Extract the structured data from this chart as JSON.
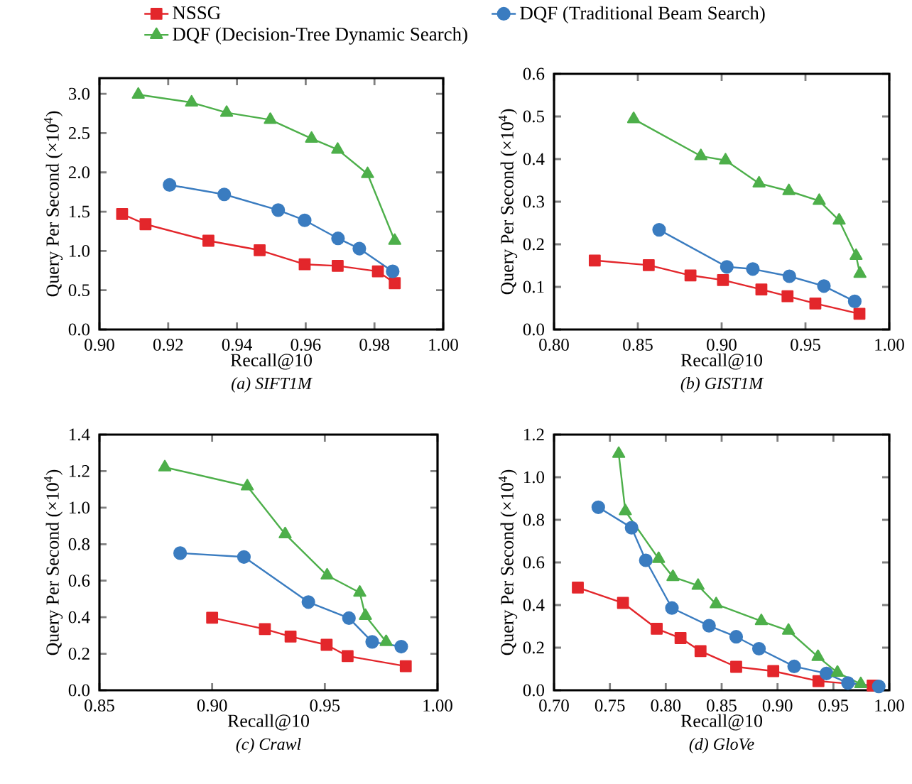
{
  "chart_data": [
    {
      "type": "line",
      "title": "(a) SIFT1M",
      "xlabel": "Recall@10",
      "ylabel": "Query Per Second (×10$^{4}$)",
      "legend": "top",
      "xlim": [
        0.9,
        1.0
      ],
      "ylim": [
        0,
        3.2
      ],
      "xticks": [
        {
          "value": 0.9,
          "label": "0.90"
        },
        {
          "value": 0.92,
          "label": "0.92"
        },
        {
          "value": 0.94,
          "label": "0.94"
        },
        {
          "value": 0.96,
          "label": "0.96"
        },
        {
          "value": 0.98,
          "label": "0.98"
        },
        {
          "value": 1.0,
          "label": "1.00"
        }
      ],
      "yticks": [
        {
          "value": 0,
          "label": "0.0"
        },
        {
          "value": 0.5,
          "label": "0.5"
        },
        {
          "value": 1.0,
          "label": "1.0"
        },
        {
          "value": 1.5,
          "label": "1.5"
        },
        {
          "value": 2.0,
          "label": "2.0"
        },
        {
          "value": 2.5,
          "label": "2.5"
        },
        {
          "value": 3.0,
          "label": "3.0"
        }
      ],
      "series": [
        {
          "name": "NSSG",
          "color": "#e3262b",
          "marker": "square",
          "x": [
            0.9066,
            0.9134,
            0.9317,
            0.9466,
            0.9597,
            0.9693,
            0.981,
            0.9859
          ],
          "values": [
            1.47,
            1.34,
            1.13,
            1.01,
            0.83,
            0.81,
            0.74,
            0.59
          ]
        },
        {
          "name": "DQF (Traditional Beam Search)",
          "color": "#3a7cc0",
          "marker": "circle",
          "x": [
            0.9204,
            0.9363,
            0.952,
            0.9597,
            0.9694,
            0.9756,
            0.9853
          ],
          "values": [
            1.84,
            1.72,
            1.52,
            1.39,
            1.16,
            1.03,
            0.74
          ]
        },
        {
          "name": "DQF (Decision-Tree Dynamic Search)",
          "color": "#4daf4a",
          "marker": "triangle",
          "x": [
            0.9113,
            0.9268,
            0.937,
            0.9497,
            0.9617,
            0.9693,
            0.978,
            0.9859
          ],
          "values": [
            2.99,
            2.89,
            2.76,
            2.67,
            2.43,
            2.29,
            1.98,
            1.13
          ]
        }
      ]
    },
    {
      "type": "line",
      "title": "(b) GIST1M",
      "xlabel": "Recall@10",
      "ylabel": "Query Per Second (×10$^{4}$)",
      "xlim": [
        0.8,
        1.0
      ],
      "ylim": [
        0,
        0.6
      ],
      "xticks": [
        {
          "value": 0.8,
          "label": "0.80"
        },
        {
          "value": 0.85,
          "label": "0.85"
        },
        {
          "value": 0.9,
          "label": "0.90"
        },
        {
          "value": 0.95,
          "label": "0.95"
        },
        {
          "value": 1.0,
          "label": "1.00"
        }
      ],
      "yticks": [
        {
          "value": 0,
          "label": "0.0"
        },
        0.1,
        0.2,
        0.3,
        0.4,
        0.5,
        0.6
      ],
      "series": [
        {
          "color": "#e3262b",
          "marker": "square",
          "x": [
            0.8243,
            0.8565,
            0.8814,
            0.9008,
            0.9237,
            0.9393,
            0.9559,
            0.9822
          ],
          "values": [
            0.162,
            0.151,
            0.127,
            0.116,
            0.094,
            0.078,
            0.061,
            0.037
          ]
        },
        {
          "color": "#3a7cc0",
          "marker": "circle",
          "x": [
            0.8627,
            0.9031,
            0.9186,
            0.9404,
            0.961,
            0.9794
          ],
          "values": [
            0.234,
            0.147,
            0.142,
            0.125,
            0.102,
            0.066
          ]
        },
        {
          "color": "#4daf4a",
          "marker": "triangle",
          "x": [
            0.8475,
            0.8876,
            0.9023,
            0.9223,
            0.9401,
            0.9582,
            0.9701,
            0.9802,
            0.9825
          ],
          "values": [
            0.494,
            0.407,
            0.397,
            0.343,
            0.325,
            0.302,
            0.256,
            0.173,
            0.131
          ]
        }
      ]
    },
    {
      "type": "line",
      "title": "(c) Crawl",
      "xlabel": "Recall@10",
      "ylabel": "Query Per Second (×10$^{4}$)",
      "xlim": [
        0.85,
        1.0
      ],
      "ylim": [
        0,
        1.4
      ],
      "xticks": [
        {
          "value": 0.85,
          "label": "0.85"
        },
        {
          "value": 0.9,
          "label": "0.90"
        },
        {
          "value": 0.95,
          "label": "0.95"
        },
        {
          "value": 1.0,
          "label": "1.00"
        }
      ],
      "yticks": [
        {
          "value": 0,
          "label": "0.0"
        },
        {
          "value": 0.2,
          "label": "0.2"
        },
        {
          "value": 0.4,
          "label": "0.4"
        },
        {
          "value": 0.6,
          "label": "0.6"
        },
        {
          "value": 0.8,
          "label": "0.8"
        },
        {
          "value": 1.0,
          "label": "1.0"
        },
        {
          "value": 1.2,
          "label": "1.2"
        },
        {
          "value": 1.4,
          "label": "1.4"
        }
      ],
      "series": [
        {
          "color": "#e3262b",
          "marker": "square",
          "x": [
            0.9,
            0.9234,
            0.9348,
            0.9508,
            0.9601,
            0.9859
          ],
          "values": [
            0.397,
            0.335,
            0.294,
            0.249,
            0.187,
            0.132
          ]
        },
        {
          "color": "#3a7cc0",
          "marker": "circle",
          "x": [
            0.8858,
            0.9141,
            0.9427,
            0.9607,
            0.971,
            0.9839
          ],
          "values": [
            0.751,
            0.73,
            0.483,
            0.395,
            0.265,
            0.239
          ]
        },
        {
          "color": "#4daf4a",
          "marker": "triangle",
          "x": [
            0.879,
            0.9156,
            0.9324,
            0.951,
            0.9655,
            0.968,
            0.9772
          ],
          "values": [
            1.221,
            1.117,
            0.855,
            0.629,
            0.535,
            0.408,
            0.265
          ]
        }
      ]
    },
    {
      "type": "line",
      "title": "(d) GloVe",
      "xlabel": "Recall@10",
      "ylabel": "Query Per Second (×10$^{4}$)",
      "xlim": [
        0.7,
        1.0
      ],
      "ylim": [
        0,
        1.2
      ],
      "xticks": [
        {
          "value": 0.7,
          "label": "0.70"
        },
        {
          "value": 0.75,
          "label": "0.75"
        },
        {
          "value": 0.8,
          "label": "0.80"
        },
        {
          "value": 0.85,
          "label": "0.85"
        },
        {
          "value": 0.9,
          "label": "0.90"
        },
        {
          "value": 0.95,
          "label": "0.95"
        },
        {
          "value": 1.0,
          "label": "1.00"
        }
      ],
      "yticks": [
        {
          "value": 0,
          "label": "0.0"
        },
        {
          "value": 0.2,
          "label": "0.2"
        },
        {
          "value": 0.4,
          "label": "0.4"
        },
        {
          "value": 0.6,
          "label": "0.6"
        },
        {
          "value": 0.8,
          "label": "0.8"
        },
        {
          "value": 1.0,
          "label": "1.0"
        },
        {
          "value": 1.2,
          "label": "1.2"
        }
      ],
      "series": [
        {
          "color": "#e3262b",
          "marker": "square",
          "x": [
            0.7213,
            0.7617,
            0.7919,
            0.8132,
            0.8311,
            0.863,
            0.8962,
            0.9366,
            0.9851
          ],
          "values": [
            0.482,
            0.41,
            0.289,
            0.245,
            0.184,
            0.11,
            0.09,
            0.043,
            0.022
          ]
        },
        {
          "color": "#3a7cc0",
          "marker": "circle",
          "x": [
            0.7396,
            0.7694,
            0.7821,
            0.8055,
            0.8387,
            0.863,
            0.8834,
            0.9149,
            0.9438,
            0.963,
            0.9906
          ],
          "values": [
            0.859,
            0.763,
            0.61,
            0.386,
            0.303,
            0.251,
            0.195,
            0.112,
            0.079,
            0.034,
            0.018
          ]
        },
        {
          "color": "#4daf4a",
          "marker": "triangle",
          "x": [
            0.7579,
            0.7638,
            0.7936,
            0.8064,
            0.8289,
            0.8451,
            0.8855,
            0.9098,
            0.9362,
            0.9536,
            0.9745
          ],
          "values": [
            1.11,
            0.841,
            0.617,
            0.532,
            0.491,
            0.404,
            0.325,
            0.28,
            0.157,
            0.083,
            0.029
          ]
        }
      ]
    }
  ]
}
